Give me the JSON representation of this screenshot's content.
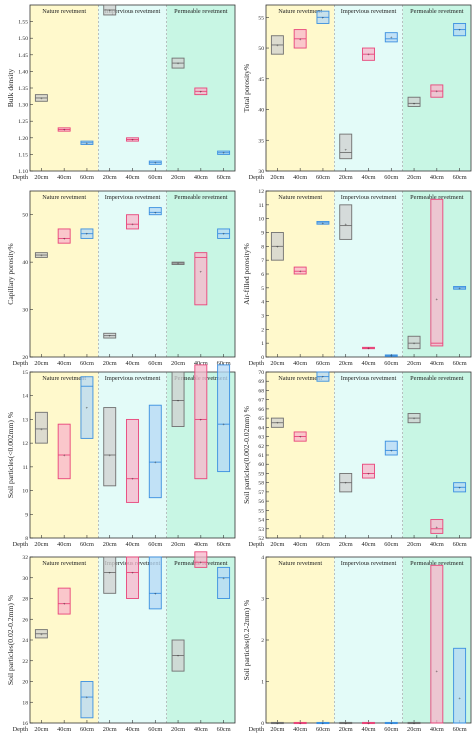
{
  "colors": {
    "bg_nature": "#FFF9CC",
    "bg_impervious": "#E3FBF8",
    "bg_permeable": "#C8F6E4",
    "box_20cm": "#707070",
    "box_20cm_fill": "#D0D0D0",
    "box_40cm": "#E8457A",
    "box_40cm_fill": "#F8B5CB",
    "box_60cm": "#3A8FE0",
    "box_60cm_fill": "#B6D8F6"
  },
  "groups": [
    "Nature revetment",
    "Impervious revetment",
    "Permeable revetment"
  ],
  "depths": [
    "20cm",
    "40cm",
    "60cm"
  ],
  "depth_label": "Depth",
  "chart_data": [
    {
      "type": "box",
      "ylabel": "Bulk density",
      "ylim": [
        1.1,
        1.6
      ],
      "yticks": [
        1.1,
        1.15,
        1.2,
        1.25,
        1.3,
        1.35,
        1.4,
        1.45,
        1.5,
        1.55
      ],
      "tick_decimals": 2,
      "boxes": [
        [
          {
            "q1": 1.31,
            "q3": 1.33,
            "med": 1.32,
            "mean": 1.32
          },
          {
            "q1": 1.22,
            "q3": 1.23,
            "med": 1.225,
            "mean": 1.225
          },
          {
            "q1": 1.18,
            "q3": 1.19,
            "med": 1.185,
            "mean": 1.185
          }
        ],
        [
          {
            "q1": 1.57,
            "q3": 1.6,
            "med": 1.585,
            "mean": 1.585
          },
          {
            "q1": 1.19,
            "q3": 1.2,
            "med": 1.195,
            "mean": 1.195
          },
          {
            "q1": 1.12,
            "q3": 1.13,
            "med": 1.125,
            "mean": 1.125
          }
        ],
        [
          {
            "q1": 1.41,
            "q3": 1.44,
            "med": 1.425,
            "mean": 1.425
          },
          {
            "q1": 1.33,
            "q3": 1.35,
            "med": 1.34,
            "mean": 1.34
          },
          {
            "q1": 1.15,
            "q3": 1.16,
            "med": 1.155,
            "mean": 1.155
          }
        ]
      ]
    },
    {
      "type": "box",
      "ylabel": "Total porosity%",
      "ylim": [
        30,
        57
      ],
      "yticks": [
        30,
        35,
        40,
        45,
        50,
        55
      ],
      "tick_decimals": 0,
      "boxes": [
        [
          {
            "q1": 49,
            "q3": 52,
            "med": 50.5,
            "mean": 50.5
          },
          {
            "q1": 50,
            "q3": 53,
            "med": 51.5,
            "mean": 51.5
          },
          {
            "q1": 54,
            "q3": 56,
            "med": 55,
            "mean": 55
          }
        ],
        [
          {
            "q1": 32,
            "q3": 36,
            "med": 33,
            "mean": 33.5
          },
          {
            "q1": 48,
            "q3": 50,
            "med": 49,
            "mean": 49
          },
          {
            "q1": 51,
            "q3": 52.5,
            "med": 51.5,
            "mean": 51.8
          }
        ],
        [
          {
            "q1": 40.5,
            "q3": 42,
            "med": 41,
            "mean": 41
          },
          {
            "q1": 42,
            "q3": 44,
            "med": 43,
            "mean": 43
          },
          {
            "q1": 52,
            "q3": 54,
            "med": 53,
            "mean": 53
          }
        ]
      ]
    },
    {
      "type": "box",
      "ylabel": "Capillary porosity%",
      "ylim": [
        20,
        55
      ],
      "yticks": [
        20,
        30,
        40,
        50
      ],
      "tick_decimals": 0,
      "boxes": [
        [
          {
            "q1": 41,
            "q3": 42,
            "med": 41.5,
            "mean": 41.5
          },
          {
            "q1": 44,
            "q3": 47,
            "med": 45,
            "mean": 45
          },
          {
            "q1": 45,
            "q3": 47,
            "med": 46,
            "mean": 46
          }
        ],
        [
          {
            "q1": 24,
            "q3": 25,
            "med": 24.5,
            "mean": 24.5
          },
          {
            "q1": 47,
            "q3": 50,
            "med": 48,
            "mean": 48
          },
          {
            "q1": 50,
            "q3": 51.5,
            "med": 50.5,
            "mean": 50.5
          }
        ],
        [
          {
            "q1": 39.5,
            "q3": 40,
            "med": 39.8,
            "mean": 39.8
          },
          {
            "q1": 31,
            "q3": 42,
            "med": 41,
            "mean": 38
          },
          {
            "q1": 45,
            "q3": 47,
            "med": 46,
            "mean": 46
          }
        ]
      ]
    },
    {
      "type": "box",
      "ylabel": "Air-filled porosity%",
      "ylim": [
        0,
        12
      ],
      "yticks": [
        0,
        1,
        2,
        3,
        4,
        5,
        6,
        7,
        8,
        9,
        10,
        11,
        12
      ],
      "tick_decimals": 0,
      "boxes": [
        [
          {
            "q1": 7,
            "q3": 9,
            "med": 8,
            "mean": 8
          },
          {
            "q1": 6,
            "q3": 6.5,
            "med": 6.2,
            "mean": 6.2
          },
          {
            "q1": 9.6,
            "q3": 9.8,
            "med": 9.7,
            "mean": 9.7
          }
        ],
        [
          {
            "q1": 8.5,
            "q3": 11,
            "med": 9.5,
            "mean": 9.6
          },
          {
            "q1": 0.6,
            "q3": 0.7,
            "med": 0.65,
            "mean": 0.65
          },
          {
            "q1": 0.05,
            "q3": 0.15,
            "med": 0.1,
            "mean": 0.1
          }
        ],
        [
          {
            "q1": 0.6,
            "q3": 1.5,
            "med": 1,
            "mean": 1
          },
          {
            "q1": 0.8,
            "q3": 11.4,
            "med": 1,
            "mean": 4.2
          },
          {
            "q1": 4.9,
            "q3": 5.1,
            "med": 5,
            "mean": 5
          }
        ]
      ]
    },
    {
      "type": "box",
      "ylabel": "Soil particles(<0.002mm) %",
      "ylim": [
        8,
        15
      ],
      "yticks": [
        8,
        9,
        10,
        11,
        12,
        13,
        14,
        15
      ],
      "tick_decimals": 0,
      "boxes": [
        [
          {
            "q1": 12,
            "q3": 13.3,
            "med": 12.6,
            "mean": 12.6
          },
          {
            "q1": 10.5,
            "q3": 12.8,
            "med": 11.5,
            "mean": 11.5
          },
          {
            "q1": 12.2,
            "q3": 14.8,
            "med": 14.4,
            "mean": 13.5
          }
        ],
        [
          {
            "q1": 10.2,
            "q3": 13.5,
            "med": 11.5,
            "mean": 11.5
          },
          {
            "q1": 9.5,
            "q3": 13,
            "med": 10.5,
            "mean": 10.5
          },
          {
            "q1": 9.7,
            "q3": 13.6,
            "med": 11.2,
            "mean": 11.2
          }
        ],
        [
          {
            "q1": 12.7,
            "q3": 15,
            "med": 13.8,
            "mean": 13.8
          },
          {
            "q1": 10.5,
            "q3": 15.3,
            "med": 13,
            "mean": 13
          },
          {
            "q1": 10.8,
            "q3": 15.3,
            "med": 12.8,
            "mean": 12.8
          }
        ]
      ]
    },
    {
      "type": "box",
      "ylabel": "Soil particles(0.002-0.02mm) %",
      "ylim": [
        52,
        70
      ],
      "yticks": [
        52,
        53,
        54,
        55,
        56,
        57,
        58,
        59,
        60,
        61,
        62,
        63,
        64,
        65,
        66,
        67,
        68,
        69,
        70
      ],
      "tick_decimals": 0,
      "boxes": [
        [
          {
            "q1": 64,
            "q3": 65,
            "med": 64.5,
            "mean": 64.5
          },
          {
            "q1": 62.5,
            "q3": 63.5,
            "med": 63,
            "mean": 63
          },
          {
            "q1": 69,
            "q3": 70,
            "med": 69.5,
            "mean": 69.5
          }
        ],
        [
          {
            "q1": 57,
            "q3": 59,
            "med": 58,
            "mean": 58
          },
          {
            "q1": 58.5,
            "q3": 60,
            "med": 59,
            "mean": 59
          },
          {
            "q1": 61,
            "q3": 62.5,
            "med": 61.5,
            "mean": 61.5
          }
        ],
        [
          {
            "q1": 64.5,
            "q3": 65.5,
            "med": 65,
            "mean": 65
          },
          {
            "q1": 52.5,
            "q3": 54,
            "med": 53,
            "mean": 53.2
          },
          {
            "q1": 57,
            "q3": 58,
            "med": 57.5,
            "mean": 57.5
          }
        ]
      ]
    },
    {
      "type": "box",
      "ylabel": "Soil particles(0.02-0.2mm) %",
      "ylim": [
        16,
        32
      ],
      "yticks": [
        16,
        18,
        20,
        22,
        24,
        26,
        28,
        30,
        32
      ],
      "tick_decimals": 0,
      "boxes": [
        [
          {
            "q1": 24.2,
            "q3": 25,
            "med": 24.6,
            "mean": 24.6
          },
          {
            "q1": 26.5,
            "q3": 29,
            "med": 27.5,
            "mean": 27.5
          },
          {
            "q1": 16.5,
            "q3": 20,
            "med": 18.5,
            "mean": 18.5
          }
        ],
        [
          {
            "q1": 28.5,
            "q3": 32,
            "med": 30.5,
            "mean": 30.5
          },
          {
            "q1": 28,
            "q3": 32,
            "med": 30.5,
            "mean": 30.5
          },
          {
            "q1": 27,
            "q3": 32,
            "med": 28.5,
            "mean": 28.5
          }
        ],
        [
          {
            "q1": 21,
            "q3": 24,
            "med": 22.5,
            "mean": 22.5
          },
          {
            "q1": 31,
            "q3": 32.5,
            "med": 31.5,
            "mean": 31.5
          },
          {
            "q1": 28,
            "q3": 31,
            "med": 30,
            "mean": 30
          }
        ]
      ]
    },
    {
      "type": "box",
      "ylabel": "Soil particles(0.2-2mm) %",
      "ylim": [
        0,
        4
      ],
      "yticks": [
        0,
        1,
        2,
        3,
        4
      ],
      "tick_decimals": 0,
      "boxes": [
        [
          {
            "q1": 0,
            "q3": 0,
            "med": 0,
            "mean": 0
          },
          {
            "q1": 0,
            "q3": 0,
            "med": 0,
            "mean": 0
          },
          {
            "q1": 0,
            "q3": 0,
            "med": 0,
            "mean": 0
          }
        ],
        [
          {
            "q1": 0,
            "q3": 0,
            "med": 0,
            "mean": 0
          },
          {
            "q1": 0,
            "q3": 0,
            "med": 0,
            "mean": 0
          },
          {
            "q1": 0,
            "q3": 0,
            "med": 0,
            "mean": 0
          }
        ],
        [
          {
            "q1": 0,
            "q3": 0,
            "med": 0,
            "mean": 0
          },
          {
            "q1": 0,
            "q3": 3.8,
            "med": 0,
            "mean": 1.25
          },
          {
            "q1": 0,
            "q3": 1.8,
            "med": 0,
            "mean": 0.6
          }
        ]
      ]
    }
  ]
}
